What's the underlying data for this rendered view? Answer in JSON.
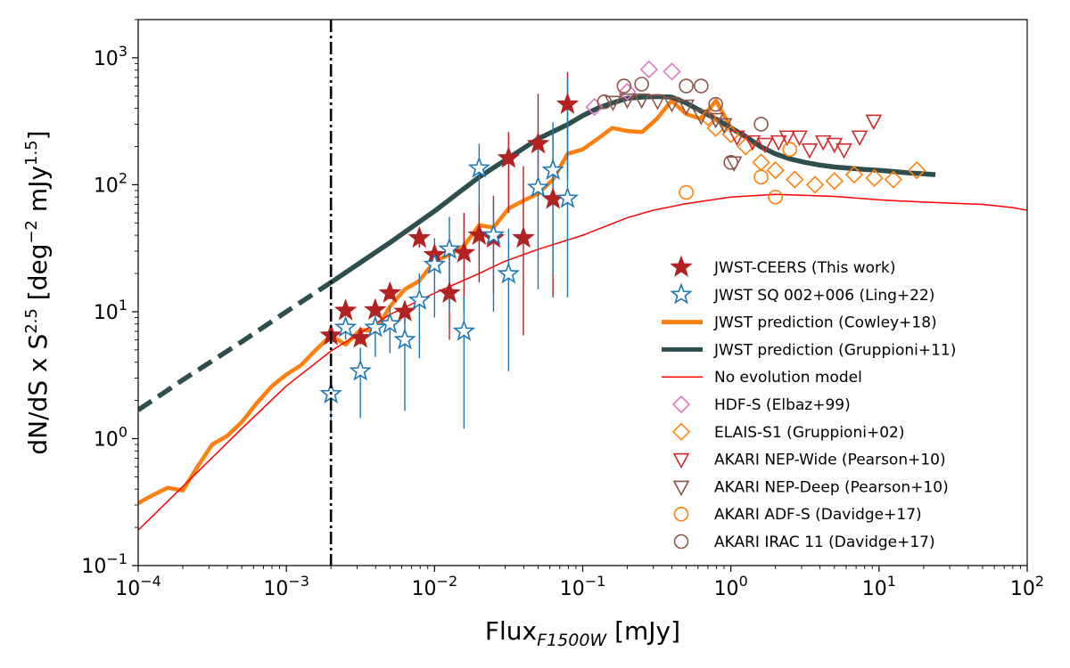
{
  "chart_data": {
    "type": "scatter",
    "xscale": "log",
    "yscale": "log",
    "xlim": [
      0.0001,
      100
    ],
    "ylim": [
      0.1,
      2000
    ],
    "xlabel": {
      "main": "Flux",
      "sub": "F1500W",
      "unit": " [mJy]"
    },
    "ylabel": {
      "main": "dN/dS x S",
      "sup": "2.5",
      "unit_a": " [deg",
      "unit_b": " mJy",
      "unit_c": "]",
      "sup2": "−2",
      "sup3": "1.5"
    },
    "x_ticks": [
      {
        "value": 0.0001,
        "base": "10",
        "exp": "−4"
      },
      {
        "value": 0.001,
        "base": "10",
        "exp": "−3"
      },
      {
        "value": 0.01,
        "base": "10",
        "exp": "−2"
      },
      {
        "value": 0.1,
        "base": "10",
        "exp": "−1"
      },
      {
        "value": 1,
        "base": "10",
        "exp": "0"
      },
      {
        "value": 10,
        "base": "10",
        "exp": "1"
      },
      {
        "value": 100,
        "base": "10",
        "exp": "2"
      }
    ],
    "y_ticks": [
      {
        "value": 0.1,
        "base": "10",
        "exp": "−1"
      },
      {
        "value": 1,
        "base": "10",
        "exp": "0"
      },
      {
        "value": 10,
        "base": "10",
        "exp": "1"
      },
      {
        "value": 100,
        "base": "10",
        "exp": "2"
      },
      {
        "value": 1000,
        "base": "10",
        "exp": "3"
      }
    ],
    "vline": {
      "x": 0.002,
      "color": "#000000",
      "style": "dashdot"
    },
    "colors": {
      "ceers": "#b22222",
      "ling": "#1f77b4",
      "cowley": "#ff7f0e",
      "gruppioni11": "#2f4f4f",
      "noevo": "#ff0000",
      "elbaz": "#e377c2",
      "elais": "#ff7f0e",
      "nepwide": "#d62728",
      "nepdeep": "#8c564b",
      "adfs": "#ff7f0e",
      "irac": "#8c564b"
    },
    "series": [
      {
        "id": "cowley",
        "name": "JWST prediction (Cowley+18)",
        "kind": "line",
        "color": "#ff7f0e",
        "points": [
          [
            0.0001,
            0.31
          ],
          [
            0.000126,
            0.36
          ],
          [
            0.000158,
            0.41
          ],
          [
            0.0002,
            0.39
          ],
          [
            0.000251,
            0.6
          ],
          [
            0.000316,
            0.9
          ],
          [
            0.000398,
            1.05
          ],
          [
            0.0005,
            1.35
          ],
          [
            0.00063,
            1.9
          ],
          [
            0.0008,
            2.6
          ],
          [
            0.001,
            3.2
          ],
          [
            0.00126,
            3.8
          ],
          [
            0.00158,
            5
          ],
          [
            0.002,
            6.5
          ],
          [
            0.00251,
            5.5
          ],
          [
            0.00316,
            7.2
          ],
          [
            0.00398,
            7
          ],
          [
            0.005,
            11
          ],
          [
            0.0063,
            15
          ],
          [
            0.0079,
            17.5
          ],
          [
            0.01,
            25
          ],
          [
            0.0126,
            28
          ],
          [
            0.0158,
            33
          ],
          [
            0.02,
            48
          ],
          [
            0.025,
            46
          ],
          [
            0.0316,
            65
          ],
          [
            0.0398,
            75
          ],
          [
            0.05,
            85
          ],
          [
            0.063,
            110
          ],
          [
            0.079,
            175
          ],
          [
            0.1,
            190
          ],
          [
            0.126,
            230
          ],
          [
            0.158,
            280
          ],
          [
            0.2,
            265
          ],
          [
            0.251,
            260
          ],
          [
            0.316,
            330
          ],
          [
            0.398,
            460
          ],
          [
            0.5,
            360
          ],
          [
            0.631,
            330
          ],
          [
            0.794,
            460
          ],
          [
            1.0,
            280
          ],
          [
            1.26,
            235
          ]
        ]
      },
      {
        "id": "gruppioni11",
        "name": "JWST prediction (Gruppioni+11)",
        "kind": "line",
        "color": "#2f4f4f",
        "points": [
          [
            0.0001,
            1.68
          ],
          [
            0.0002,
            2.9
          ],
          [
            0.0005,
            5.8
          ],
          [
            0.001,
            10
          ],
          [
            0.002,
            17
          ],
          [
            0.005,
            35
          ],
          [
            0.01,
            62
          ],
          [
            0.02,
            115
          ],
          [
            0.05,
            230
          ],
          [
            0.08,
            300
          ],
          [
            0.1,
            350
          ],
          [
            0.126,
            400
          ],
          [
            0.158,
            440
          ],
          [
            0.2,
            480
          ],
          [
            0.251,
            490
          ],
          [
            0.316,
            495
          ],
          [
            0.398,
            490
          ],
          [
            0.5,
            440
          ],
          [
            0.631,
            380
          ],
          [
            0.794,
            330
          ],
          [
            1.0,
            280
          ],
          [
            1.26,
            240
          ],
          [
            1.58,
            200
          ],
          [
            2.0,
            175
          ],
          [
            2.51,
            160
          ],
          [
            3.16,
            150
          ],
          [
            3.98,
            143
          ],
          [
            5.0,
            138
          ],
          [
            6.31,
            135
          ],
          [
            7.94,
            132
          ],
          [
            10,
            130
          ],
          [
            12.6,
            127
          ],
          [
            15.8,
            124
          ],
          [
            20,
            122
          ],
          [
            24,
            120
          ]
        ]
      },
      {
        "id": "noevo",
        "name": "No evolution model",
        "kind": "line",
        "color": "#ff0000",
        "points": [
          [
            0.0001,
            0.19
          ],
          [
            0.0002,
            0.42
          ],
          [
            0.0005,
            1.2
          ],
          [
            0.001,
            2.6
          ],
          [
            0.002,
            4.9
          ],
          [
            0.005,
            9.5
          ],
          [
            0.01,
            14
          ],
          [
            0.02,
            20
          ],
          [
            0.03,
            25
          ],
          [
            0.05,
            31
          ],
          [
            0.1,
            40
          ],
          [
            0.2,
            55
          ],
          [
            0.3,
            63
          ],
          [
            0.5,
            71
          ],
          [
            1.0,
            80
          ],
          [
            2.0,
            84
          ],
          [
            5.0,
            81
          ],
          [
            10,
            76
          ],
          [
            20,
            73
          ],
          [
            50,
            70
          ],
          [
            80,
            66
          ],
          [
            100,
            63
          ]
        ]
      },
      {
        "id": "ceers",
        "name": "JWST-CEERS (This work)",
        "kind": "marker",
        "marker": "star-filled",
        "color": "#b22222",
        "points": [
          [
            0.002,
            6.5,
            5.8,
            7.3
          ],
          [
            0.00251,
            10.2,
            9.5,
            11
          ],
          [
            0.00316,
            6.2,
            5.5,
            7
          ],
          [
            0.00398,
            10.3,
            9.2,
            11.5
          ],
          [
            0.005,
            14,
            12.5,
            15.8
          ],
          [
            0.0063,
            10,
            8,
            12
          ],
          [
            0.0079,
            38,
            32,
            44
          ],
          [
            0.01,
            28,
            22,
            34
          ],
          [
            0.0126,
            14,
            6,
            28
          ],
          [
            0.0158,
            29,
            10,
            60
          ],
          [
            0.02,
            40,
            17,
            70
          ],
          [
            0.025,
            38,
            14,
            82
          ],
          [
            0.0316,
            162,
            60,
            260
          ],
          [
            0.0398,
            38,
            6.5,
            140
          ],
          [
            0.05,
            210,
            90,
            520
          ],
          [
            0.063,
            77,
            13,
            250
          ],
          [
            0.079,
            430,
            110,
            770
          ]
        ]
      },
      {
        "id": "ling",
        "name": "JWST SQ 002+006 (Ling+22)",
        "kind": "marker",
        "marker": "star-open",
        "color": "#1f77b4",
        "points": [
          [
            0.002,
            2.25,
            1.3,
            3.2
          ],
          [
            0.00251,
            7.5,
            6,
            9
          ],
          [
            0.00316,
            3.4,
            1.45,
            5.2
          ],
          [
            0.00398,
            7.5,
            4.4,
            10.5
          ],
          [
            0.005,
            8,
            4.7,
            11.2
          ],
          [
            0.0063,
            6,
            1.65,
            10.5
          ],
          [
            0.0079,
            12.3,
            4.3,
            20
          ],
          [
            0.01,
            23.5,
            9,
            38
          ],
          [
            0.0126,
            31,
            10,
            56
          ],
          [
            0.0158,
            7,
            1.2,
            13
          ],
          [
            0.02,
            135,
            65,
            210
          ],
          [
            0.025,
            40,
            10,
            75
          ],
          [
            0.0316,
            19.8,
            3.4,
            45
          ],
          [
            0.05,
            95,
            15,
            230
          ],
          [
            0.063,
            130,
            20,
            310
          ],
          [
            0.079,
            78,
            13,
            690
          ]
        ]
      },
      {
        "id": "elbaz",
        "name": "HDF-S (Elbaz+99)",
        "kind": "marker",
        "marker": "diamond",
        "color": "#e377c2",
        "points": [
          [
            0.12,
            410
          ],
          [
            0.2,
            540
          ],
          [
            0.28,
            810
          ],
          [
            0.4,
            780
          ]
        ]
      },
      {
        "id": "elais",
        "name": "ELAIS-S1 (Gruppioni+02)",
        "kind": "marker",
        "marker": "diamond",
        "color": "#ff7f0e",
        "points": [
          [
            0.7,
            340
          ],
          [
            0.79,
            280
          ],
          [
            1.0,
            250
          ],
          [
            1.26,
            200
          ],
          [
            1.6,
            150
          ],
          [
            2.0,
            130
          ],
          [
            2.7,
            110
          ],
          [
            3.7,
            100
          ],
          [
            5.0,
            107
          ],
          [
            6.8,
            120
          ],
          [
            9.3,
            113
          ],
          [
            12.5,
            110
          ],
          [
            18,
            130
          ]
        ]
      },
      {
        "id": "nepwide",
        "name": "AKARI NEP-Wide (Pearson+10)",
        "kind": "marker",
        "marker": "tri-down",
        "color": "#d62728",
        "points": [
          [
            1.1,
            240
          ],
          [
            1.4,
            220
          ],
          [
            1.7,
            210
          ],
          [
            2.1,
            220
          ],
          [
            2.4,
            240
          ],
          [
            2.9,
            240
          ],
          [
            3.4,
            190
          ],
          [
            4.2,
            220
          ],
          [
            5.0,
            210
          ],
          [
            5.8,
            190
          ],
          [
            7.4,
            240
          ],
          [
            9.2,
            320
          ]
        ]
      },
      {
        "id": "nepdeep",
        "name": "AKARI NEP-Deep (Pearson+10)",
        "kind": "marker",
        "marker": "tri-down",
        "color": "#8c564b",
        "points": [
          [
            0.16,
            450
          ],
          [
            0.2,
            470
          ],
          [
            0.25,
            470
          ],
          [
            0.32,
            460
          ],
          [
            0.4,
            440
          ],
          [
            0.5,
            420
          ],
          [
            0.63,
            350
          ],
          [
            0.79,
            330
          ],
          [
            0.9,
            300
          ],
          [
            1.05,
            150
          ]
        ]
      },
      {
        "id": "adfs",
        "name": "AKARI ADF-S (Davidge+17)",
        "kind": "marker",
        "marker": "circle",
        "color": "#ff7f0e",
        "points": [
          [
            0.5,
            87
          ],
          [
            1.6,
            115
          ],
          [
            2.0,
            80
          ],
          [
            2.5,
            190
          ]
        ]
      },
      {
        "id": "irac",
        "name": "AKARI IRAC 11 (Davidge+17)",
        "kind": "marker",
        "marker": "circle",
        "color": "#8c564b",
        "points": [
          [
            0.14,
            450
          ],
          [
            0.19,
            600
          ],
          [
            0.25,
            620
          ],
          [
            0.5,
            600
          ],
          [
            0.63,
            600
          ],
          [
            0.79,
            430
          ],
          [
            1.0,
            150
          ],
          [
            1.6,
            300
          ]
        ]
      }
    ],
    "legend": {
      "position": "lower-right",
      "entries": [
        {
          "series": "ceers",
          "label": "JWST-CEERS (This work)",
          "marker": "star-filled",
          "color": "#b22222"
        },
        {
          "series": "ling",
          "label": "JWST SQ 002+006 (Ling+22)",
          "marker": "star-open",
          "color": "#1f77b4"
        },
        {
          "series": "cowley",
          "label": "JWST prediction (Cowley+18)",
          "marker": "line-thick",
          "color": "#ff7f0e"
        },
        {
          "series": "gruppioni11",
          "label": "JWST prediction (Gruppioni+11)",
          "marker": "line-thick",
          "color": "#2f4f4f"
        },
        {
          "series": "noevo",
          "label": "No evolution model",
          "marker": "line-thin",
          "color": "#ff0000"
        },
        {
          "series": "elbaz",
          "label": "HDF-S (Elbaz+99)",
          "marker": "diamond",
          "color": "#e377c2"
        },
        {
          "series": "elais",
          "label": "ELAIS-S1 (Gruppioni+02)",
          "marker": "diamond",
          "color": "#ff7f0e"
        },
        {
          "series": "nepwide",
          "label": "AKARI NEP-Wide (Pearson+10)",
          "marker": "tri-down",
          "color": "#d62728"
        },
        {
          "series": "nepdeep",
          "label": "AKARI NEP-Deep (Pearson+10)",
          "marker": "tri-down",
          "color": "#8c564b"
        },
        {
          "series": "adfs",
          "label": "AKARI ADF-S (Davidge+17)",
          "marker": "circle",
          "color": "#ff7f0e"
        },
        {
          "series": "irac",
          "label": "AKARI IRAC 11 (Davidge+17)",
          "marker": "circle",
          "color": "#8c564b"
        }
      ]
    }
  }
}
